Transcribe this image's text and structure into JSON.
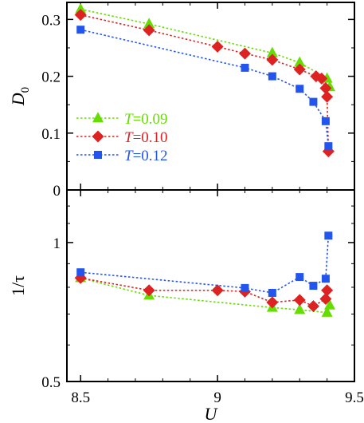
{
  "chart_data": [
    {
      "type": "line",
      "panel": "top",
      "xlabel": "",
      "ylabel": "D",
      "ylabel_subscript": "0",
      "xlim": [
        8.45,
        9.5
      ],
      "ylim": [
        0,
        0.33
      ],
      "xticks": [
        8.5,
        9,
        9.5
      ],
      "xtick_labels": [
        "",
        "",
        ""
      ],
      "yticks": [
        0,
        0.1,
        0.2,
        0.3
      ],
      "ytick_labels": [
        "0",
        "0.1",
        "0.2",
        "0.3"
      ],
      "grid": false,
      "legend_position": "center-left",
      "series": [
        {
          "name": "T=0.09",
          "legend_var": "T",
          "legend_val": "=0.09",
          "color": "#66dd00",
          "marker": "triangle",
          "x": [
            8.5,
            8.75,
            9.2,
            9.3,
            9.4,
            9.41
          ],
          "y": [
            0.318,
            0.292,
            0.241,
            0.224,
            0.196,
            0.181
          ]
        },
        {
          "name": "T=0.10",
          "legend_var": "T",
          "legend_val": "=0.10",
          "color": "#dd2222",
          "marker": "diamond",
          "x": [
            8.5,
            8.75,
            9.0,
            9.1,
            9.2,
            9.3,
            9.36,
            9.38,
            9.395,
            9.4,
            9.405
          ],
          "y": [
            0.308,
            0.281,
            0.252,
            0.24,
            0.229,
            0.212,
            0.2,
            0.196,
            0.179,
            0.164,
            0.068
          ]
        },
        {
          "name": "T=0.12",
          "legend_var": "T",
          "legend_val": "=0.12",
          "color": "#2255ee",
          "marker": "square",
          "x": [
            8.5,
            9.1,
            9.2,
            9.3,
            9.35,
            9.395,
            9.405
          ],
          "y": [
            0.282,
            0.215,
            0.2,
            0.178,
            0.155,
            0.121,
            0.077
          ]
        }
      ]
    },
    {
      "type": "line",
      "panel": "bottom",
      "xlabel": "U",
      "ylabel": "1/τ",
      "xlim": [
        8.45,
        9.5
      ],
      "ylim": [
        0.5,
        1.3
      ],
      "yscale": "log",
      "xticks": [
        8.5,
        9,
        9.5
      ],
      "xtick_labels": [
        "8.5",
        "9",
        "9.5"
      ],
      "yticks": [
        0.5,
        1
      ],
      "ytick_labels": [
        "0.5",
        "1"
      ],
      "grid": false,
      "series": [
        {
          "name": "T=0.09",
          "color": "#66dd00",
          "marker": "triangle",
          "x": [
            8.5,
            8.75,
            9.2,
            9.3,
            9.4,
            9.41
          ],
          "y": [
            0.838,
            0.768,
            0.723,
            0.715,
            0.705,
            0.731
          ]
        },
        {
          "name": "T=0.10",
          "color": "#dd2222",
          "marker": "diamond",
          "x": [
            8.5,
            8.75,
            9.0,
            9.1,
            9.2,
            9.3,
            9.35,
            9.395,
            9.4
          ],
          "y": [
            0.838,
            0.788,
            0.788,
            0.783,
            0.742,
            0.751,
            0.728,
            0.755,
            0.788
          ]
        },
        {
          "name": "T=0.12",
          "color": "#2255ee",
          "marker": "square",
          "x": [
            8.5,
            9.1,
            9.2,
            9.3,
            9.35,
            9.395,
            9.405
          ],
          "y": [
            0.862,
            0.797,
            0.778,
            0.842,
            0.806,
            0.835,
            1.035
          ]
        }
      ]
    }
  ]
}
